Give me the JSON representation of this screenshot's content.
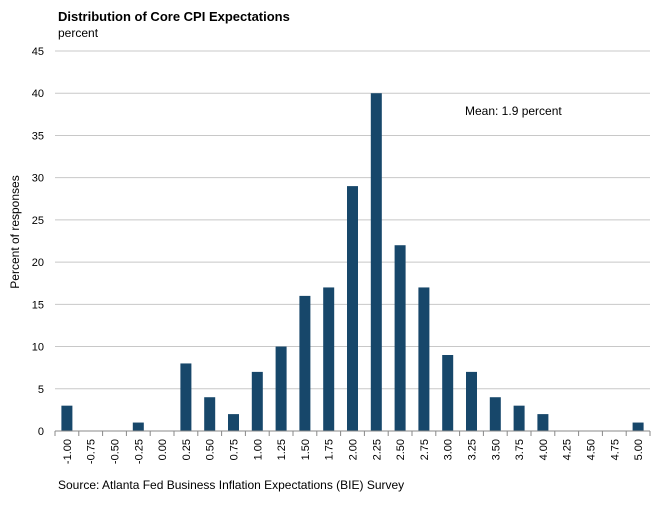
{
  "chart_data": {
    "type": "bar",
    "title": "Distribution of Core CPI Expectations",
    "subtitle": "percent",
    "ylabel": "Percent of responses",
    "xlabel": "",
    "ylim": [
      0,
      45
    ],
    "yticks": [
      "0",
      "5",
      "10",
      "15",
      "20",
      "25",
      "30",
      "35",
      "40",
      "45"
    ],
    "categories": [
      "-1.00",
      "-0.75",
      "-0.50",
      "-0.25",
      "0.00",
      "0.25",
      "0.50",
      "0.75",
      "1.00",
      "1.25",
      "1.50",
      "1.75",
      "2.00",
      "2.25",
      "2.50",
      "2.75",
      "3.00",
      "3.25",
      "3.50",
      "3.75",
      "4.00",
      "4.25",
      "4.50",
      "4.75",
      "5.00"
    ],
    "values": [
      3,
      0,
      0,
      1,
      0,
      8,
      4,
      2,
      7,
      10,
      16,
      17,
      29,
      40,
      22,
      17,
      9,
      7,
      4,
      3,
      2,
      0,
      0,
      0,
      1
    ],
    "annotation": "Mean:  1.9 percent",
    "source": "Source: Atlanta Fed Business Inflation Expectations (BIE) Survey",
    "grid": true,
    "bar_color": "#17476a",
    "grid_color": "#c8c8c8"
  }
}
